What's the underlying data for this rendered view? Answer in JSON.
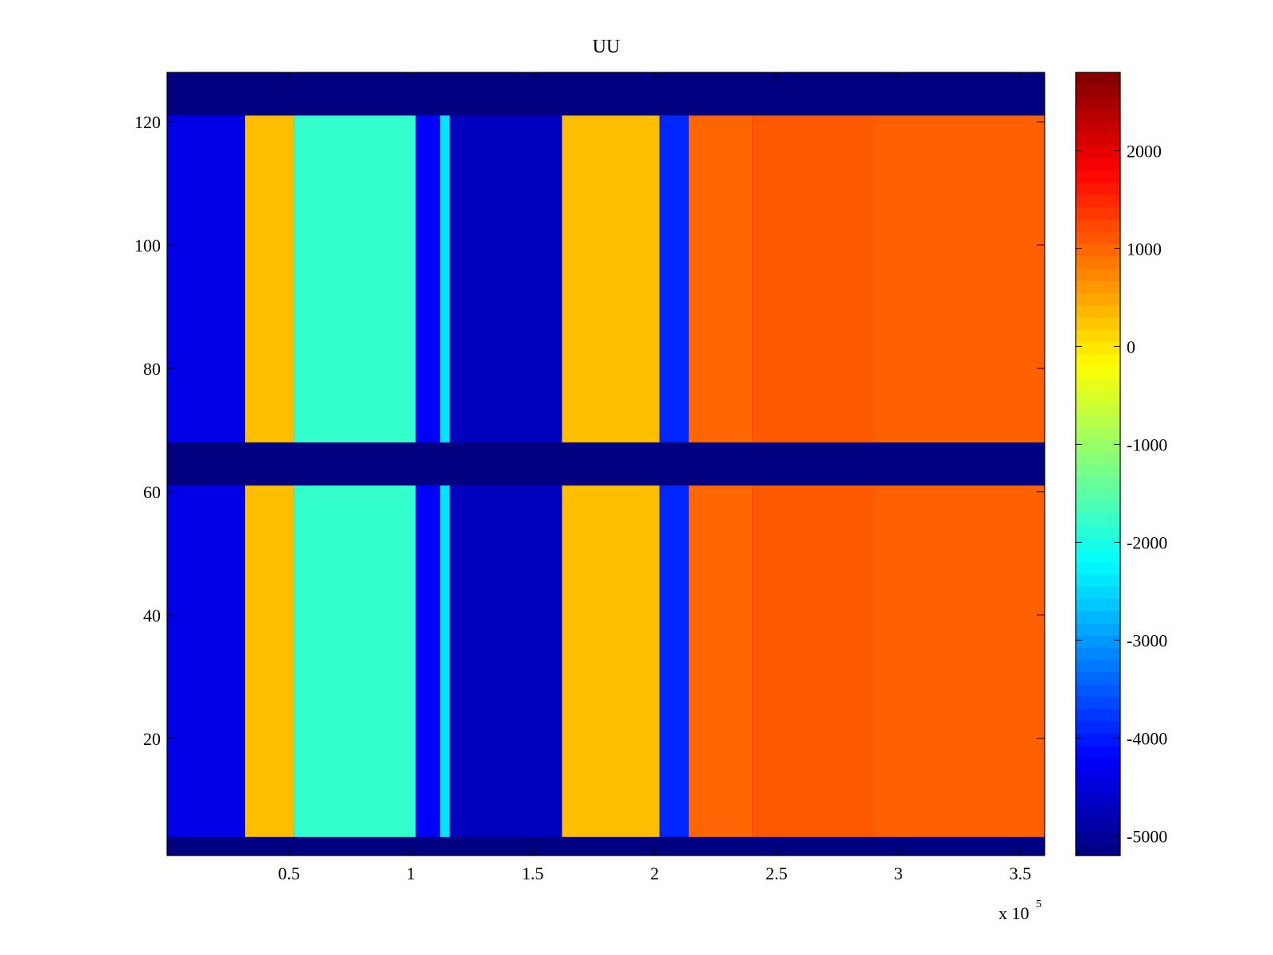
{
  "chart_data": {
    "type": "heatmap",
    "title": "UU",
    "xlabel": "",
    "ylabel": "",
    "x_multiplier_label": "x 10",
    "x_multiplier_exponent": "5",
    "xlim": [
      0,
      3.6
    ],
    "ylim": [
      1,
      128
    ],
    "x_ticks": [
      0.5,
      1,
      1.5,
      2,
      2.5,
      3,
      3.5
    ],
    "x_tick_labels": [
      "0.5",
      "1",
      "1.5",
      "2",
      "2.5",
      "3",
      "3.5"
    ],
    "y_ticks": [
      20,
      40,
      60,
      80,
      100,
      120
    ],
    "y_tick_labels": [
      "20",
      "40",
      "60",
      "80",
      "100",
      "120"
    ],
    "colorbar": {
      "range": [
        -5200,
        2800
      ],
      "ticks": [
        -5000,
        -4000,
        -3000,
        -2000,
        -1000,
        0,
        1000,
        2000
      ],
      "tick_labels": [
        "-5000",
        "-4000",
        "-3000",
        "-2000",
        "-1000",
        "0",
        "1000",
        "2000"
      ],
      "colormap": "jet"
    },
    "row_blocks": [
      {
        "label": "rows 4-61",
        "y_range": [
          4,
          61
        ]
      },
      {
        "label": "rows 68-121",
        "y_range": [
          68,
          121
        ]
      }
    ],
    "background_value": -5200,
    "bands": [
      {
        "x_range": [
          0.0,
          0.32
        ],
        "value": -4400
      },
      {
        "x_range": [
          0.32,
          0.52
        ],
        "value": 300
      },
      {
        "x_range": [
          0.52,
          1.02
        ],
        "value": -1800
      },
      {
        "x_range": [
          1.02,
          1.12
        ],
        "value": -4200
      },
      {
        "x_range": [
          1.12,
          1.16
        ],
        "value": -2400
      },
      {
        "x_range": [
          1.16,
          1.62
        ],
        "value": -4700
      },
      {
        "x_range": [
          1.62,
          2.02
        ],
        "value": 300
      },
      {
        "x_range": [
          2.02,
          2.14
        ],
        "value": -3900
      },
      {
        "x_range": [
          2.14,
          2.4
        ],
        "value": 1000
      },
      {
        "x_range": [
          2.4,
          2.9
        ],
        "value": 1100
      },
      {
        "x_range": [
          2.9,
          3.6
        ],
        "value": 1050
      }
    ]
  }
}
